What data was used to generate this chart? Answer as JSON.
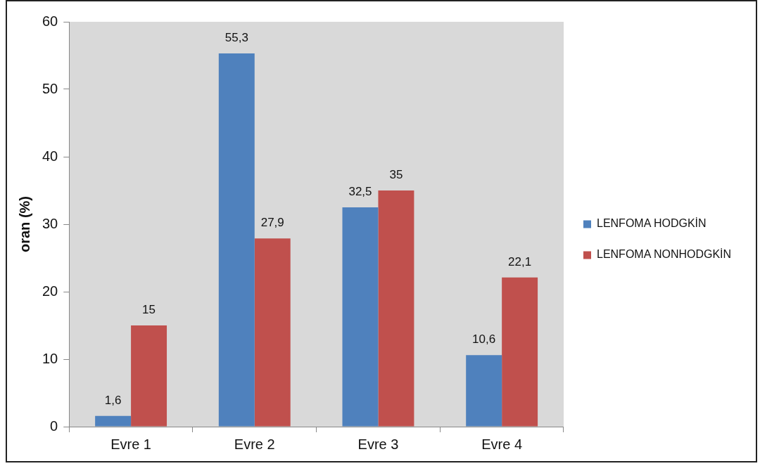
{
  "chart_data": {
    "type": "bar",
    "ylabel": "oran (%)",
    "categories": [
      "Evre 1",
      "Evre 2",
      "Evre 3",
      "Evre 4"
    ],
    "series": [
      {
        "name": "LENFOMA HODGKİN",
        "color": "#4f81bd",
        "values": [
          1.6,
          55.3,
          32.5,
          10.6
        ],
        "value_labels": [
          "1,6",
          "55,3",
          "32,5",
          "10,6"
        ]
      },
      {
        "name": "LENFOMA NONHODGKİN",
        "color": "#c0504d",
        "values": [
          15,
          27.9,
          35,
          22.1
        ],
        "value_labels": [
          "15",
          "27,9",
          "35",
          "22,1"
        ]
      }
    ],
    "ylim": [
      0,
      60
    ],
    "yticks": [
      0,
      10,
      20,
      30,
      40,
      50,
      60
    ],
    "grid": false,
    "legend": "right"
  }
}
